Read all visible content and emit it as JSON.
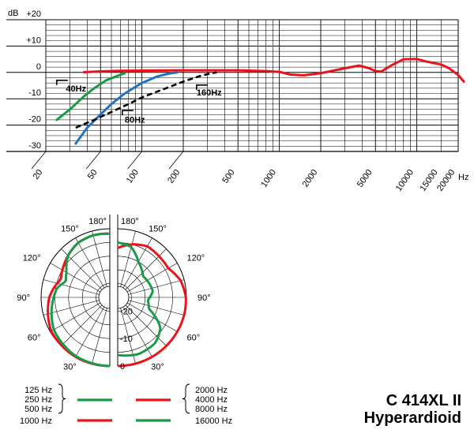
{
  "product": {
    "model": "C 414XL II",
    "pattern": "Hyperardioid"
  },
  "colors": {
    "red": "#e8141a",
    "green": "#1a9a48",
    "blue": "#1f73c2",
    "black": "#000000"
  },
  "chart_data": [
    {
      "type": "line",
      "title": "",
      "xlabel": "Hz",
      "ylabel": "dB",
      "x_scale": "log",
      "xlim": [
        20,
        20000
      ],
      "ylim": [
        -30,
        20
      ],
      "grid": true,
      "x_ticks": [
        "20",
        "50",
        "100",
        "200",
        "500",
        "1000",
        "2000",
        "5000",
        "10000",
        "15000",
        "20000"
      ],
      "y_ticks": [
        "+20",
        "+10",
        "0",
        "-10",
        "-20",
        "-30"
      ],
      "series": [
        {
          "color": "#e8141a",
          "style": "solid",
          "points": [
            [
              38,
              0.1
            ],
            [
              50,
              0.4
            ],
            [
              70,
              0.6
            ],
            [
              100,
              0.7
            ],
            [
              200,
              0.8
            ],
            [
              500,
              0.8
            ],
            [
              800,
              0.5
            ],
            [
              1000,
              0.2
            ],
            [
              1200,
              -0.8
            ],
            [
              1500,
              -1.1
            ],
            [
              2000,
              -0.3
            ],
            [
              3000,
              1.6
            ],
            [
              3800,
              2.6
            ],
            [
              4500,
              1.6
            ],
            [
              5000,
              0.5
            ],
            [
              5500,
              0.3
            ],
            [
              6500,
              2.6
            ],
            [
              8000,
              5.0
            ],
            [
              10000,
              5.1
            ],
            [
              12000,
              4.0
            ],
            [
              15000,
              3.0
            ],
            [
              17000,
              1.7
            ],
            [
              20000,
              -1.0
            ],
            [
              22000,
              -3.5
            ]
          ]
        },
        {
          "name": "40Hz",
          "color": "#1a9a48",
          "style": "solid",
          "points": [
            [
              24,
              -18
            ],
            [
              30,
              -14
            ],
            [
              38,
              -9
            ],
            [
              45,
              -6
            ],
            [
              55,
              -3
            ],
            [
              65,
              -1.5
            ],
            [
              75,
              -0.3
            ]
          ]
        },
        {
          "name": "80Hz",
          "color": "#1f73c2",
          "style": "solid",
          "points": [
            [
              33,
              -27
            ],
            [
              40,
              -21
            ],
            [
              50,
              -16
            ],
            [
              60,
              -12
            ],
            [
              75,
              -8
            ],
            [
              100,
              -4
            ],
            [
              130,
              -1.5
            ],
            [
              160,
              -0.4
            ],
            [
              180,
              0
            ]
          ]
        },
        {
          "name": "160Hz",
          "color": "#000000",
          "style": "dashed",
          "points": [
            [
              33,
              -21
            ],
            [
              45,
              -18
            ],
            [
              60,
              -15
            ],
            [
              80,
              -12
            ],
            [
              100,
              -9.5
            ],
            [
              150,
              -6
            ],
            [
              200,
              -3.5
            ],
            [
              260,
              -1.5
            ],
            [
              320,
              -0.3
            ],
            [
              350,
              0
            ]
          ]
        }
      ],
      "annotations": [
        "40Hz",
        "80Hz",
        "160Hz"
      ]
    },
    {
      "type": "polar",
      "title": "",
      "r_ticks": [
        "-20",
        "-10",
        "0"
      ],
      "angle_labels": [
        "180°",
        "150°",
        "120°",
        "90°",
        "60°",
        "30°",
        "150°",
        "120°",
        "90°",
        "60°",
        "30°",
        "180°"
      ],
      "left_half": {
        "green_db": [
          [
            0,
            0
          ],
          [
            30,
            -0.3
          ],
          [
            60,
            -1.5
          ],
          [
            90,
            -4.6
          ],
          [
            100,
            -5.5
          ],
          [
            110,
            -8.0
          ],
          [
            120,
            -6.8
          ],
          [
            135,
            -3.5
          ],
          [
            150,
            -2.0
          ],
          [
            165,
            -1.6
          ],
          [
            180,
            -1.8
          ]
        ],
        "red_db": [
          [
            0,
            0
          ],
          [
            30,
            0
          ],
          [
            60,
            -0.4
          ],
          [
            90,
            -3.0
          ],
          [
            100,
            -4.4
          ],
          [
            110,
            -6.0
          ],
          [
            120,
            -5.1
          ],
          [
            135,
            -3.5
          ],
          [
            150,
            -2.0
          ],
          [
            165,
            -1.6
          ],
          [
            180,
            -1.8
          ]
        ]
      },
      "right_half": {
        "red_db": [
          [
            0,
            0
          ],
          [
            30,
            0
          ],
          [
            60,
            0
          ],
          [
            75,
            0
          ],
          [
            90,
            -0.2
          ],
          [
            105,
            -1.3
          ],
          [
            120,
            -3.8
          ],
          [
            135,
            -3.8
          ],
          [
            150,
            -3.5
          ],
          [
            165,
            -5.0
          ],
          [
            180,
            -7.0
          ]
        ],
        "green_db": [
          [
            0,
            -4
          ],
          [
            20,
            -3
          ],
          [
            40,
            -3.5
          ],
          [
            55,
            -6
          ],
          [
            70,
            -13
          ],
          [
            85,
            -14
          ],
          [
            100,
            -12
          ],
          [
            115,
            -12.5
          ],
          [
            130,
            -13
          ],
          [
            150,
            -10
          ],
          [
            165,
            -6
          ],
          [
            180,
            -5
          ]
        ]
      },
      "legend": {
        "left": [
          {
            "labels": [
              "125 Hz",
              "250 Hz",
              "500 Hz"
            ],
            "color": "#1a9a48"
          },
          {
            "labels": [
              "1000 Hz"
            ],
            "color": "#e8141a"
          }
        ],
        "right": [
          {
            "labels": [
              "2000 Hz",
              "4000 Hz",
              "8000 Hz"
            ],
            "color": "#e8141a"
          },
          {
            "labels": [
              "16000 Hz"
            ],
            "color": "#1a9a48"
          }
        ]
      }
    }
  ]
}
